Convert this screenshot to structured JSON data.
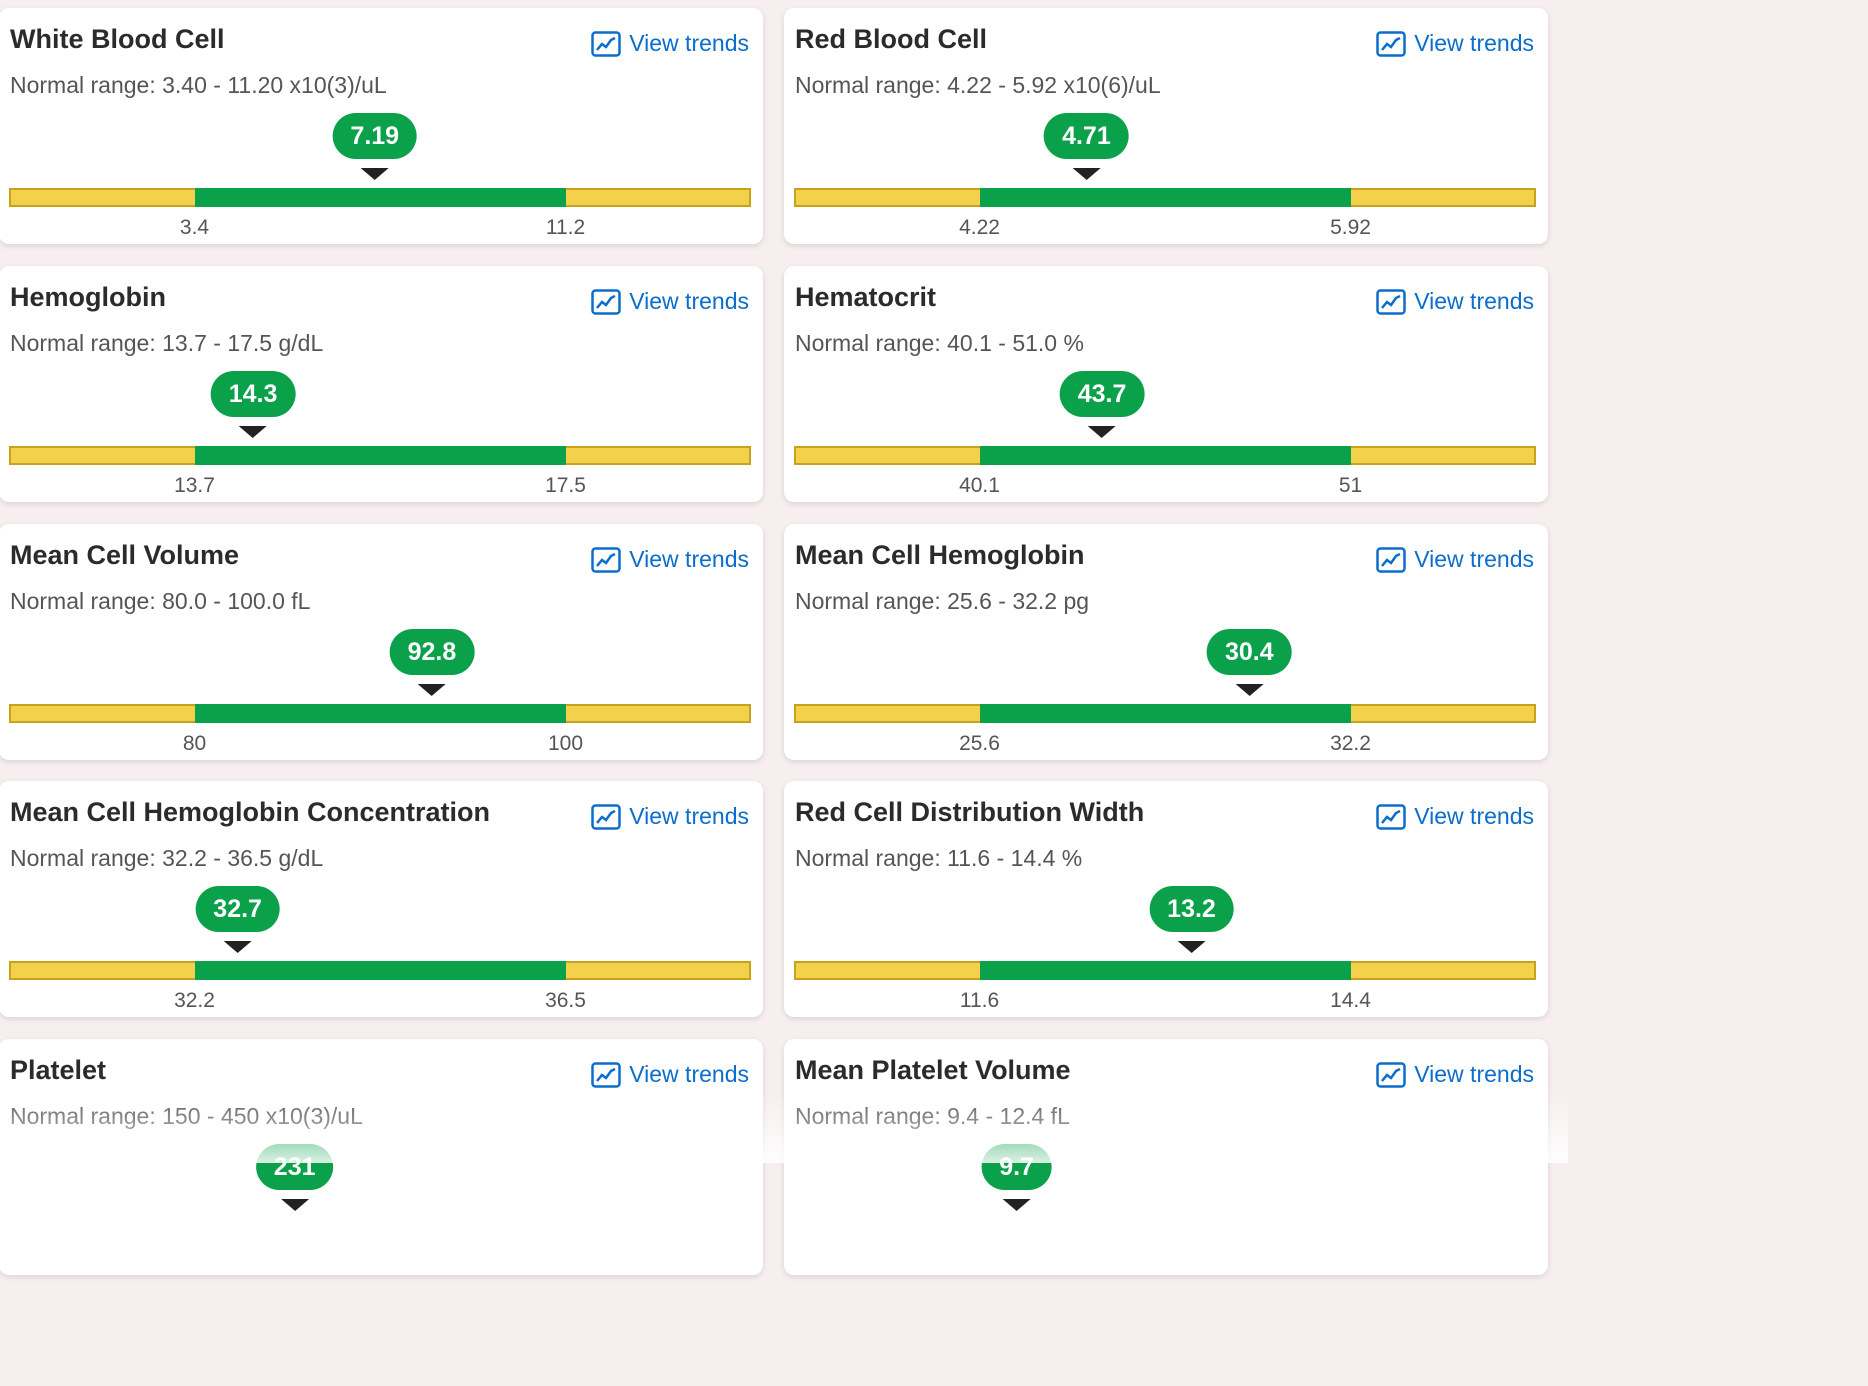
{
  "trends_label": "View trends",
  "range_prefix": "Normal range:",
  "colors": {
    "normal": "#0aa14a",
    "out_of_range": "#f3d14a",
    "link": "#0b6dcc"
  },
  "icons": {
    "trends": "trend-chart-icon"
  },
  "tests": [
    {
      "name": "White Blood Cell",
      "range_text": "Normal range: 3.40 - 11.20 x10(3)/uL",
      "value": "7.19",
      "low": "3.4",
      "high": "11.2"
    },
    {
      "name": "Red Blood Cell",
      "range_text": "Normal range: 4.22 - 5.92 x10(6)/uL",
      "value": "4.71",
      "low": "4.22",
      "high": "5.92"
    },
    {
      "name": "Hemoglobin",
      "range_text": "Normal range: 13.7 - 17.5 g/dL",
      "value": "14.3",
      "low": "13.7",
      "high": "17.5"
    },
    {
      "name": "Hematocrit",
      "range_text": "Normal range: 40.1 - 51.0 %",
      "value": "43.7",
      "low": "40.1",
      "high": "51"
    },
    {
      "name": "Mean Cell Volume",
      "range_text": "Normal range: 80.0 - 100.0 fL",
      "value": "92.8",
      "low": "80",
      "high": "100"
    },
    {
      "name": "Mean Cell Hemoglobin",
      "range_text": "Normal range: 25.6 - 32.2 pg",
      "value": "30.4",
      "low": "25.6",
      "high": "32.2"
    },
    {
      "name": "Mean Cell Hemoglobin Concentration",
      "range_text": "Normal range: 32.2 - 36.5 g/dL",
      "value": "32.7",
      "low": "32.2",
      "high": "36.5"
    },
    {
      "name": "Red Cell Distribution Width",
      "range_text": "Normal range: 11.6 - 14.4 %",
      "value": "13.2",
      "low": "11.6",
      "high": "14.4"
    },
    {
      "name": "Platelet",
      "range_text": "Normal range: 150 - 450 x10(3)/uL",
      "value": "231",
      "low": "150",
      "high": "450"
    },
    {
      "name": "Mean Platelet Volume",
      "range_text": "Normal range: 9.4 - 12.4 fL",
      "value": "9.7",
      "low": "9.4",
      "high": "12.4"
    }
  ]
}
